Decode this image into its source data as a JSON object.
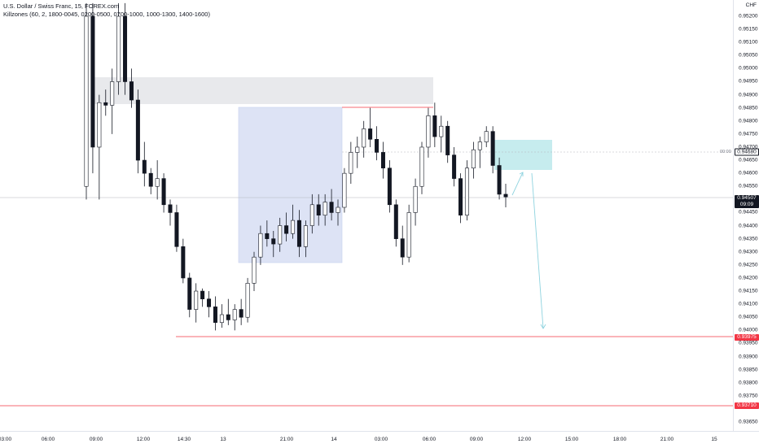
{
  "legend": {
    "title": "U.S. Dollar / Swiss Franc, 15, FOREX.com",
    "indicator": "Killzones (60, 2, 1800-0045, 0200-0500, 0700-1000, 1000-1300, 1400-1600)"
  },
  "price_axis": {
    "currency": "CHF",
    "ticks": [
      "0.95200",
      "0.95150",
      "0.95100",
      "0.95050",
      "0.95000",
      "0.94950",
      "0.94900",
      "0.94850",
      "0.94800",
      "0.94750",
      "0.94700",
      "0.94650",
      "0.94600",
      "0.94550",
      "0.94450",
      "0.94400",
      "0.94350",
      "0.94300",
      "0.94250",
      "0.94200",
      "0.94150",
      "0.94100",
      "0.94050",
      "0.94000",
      "0.93950",
      "0.93900",
      "0.93850",
      "0.93800",
      "0.93750",
      "0.93650"
    ],
    "current_price": "0.94507",
    "countdown": "09:09",
    "target_entry_price": "0.94680",
    "target_entry_time": "00:00",
    "low_level_1": "0.93975",
    "low_level_2": "0.93710"
  },
  "time_axis": {
    "labels": [
      "03:00",
      "06:00",
      "09:00",
      "12:00",
      "14:30",
      "13",
      "21:00",
      "14",
      "03:00",
      "06:00",
      "09:00",
      "12:00",
      "15:00",
      "18:00",
      "21:00",
      "15"
    ]
  },
  "colors": {
    "bull_body": "#ffffff",
    "bear_body": "#131722",
    "wick": "#131722",
    "gray_zone": "#e8e9ec",
    "blue_zone": "#dde3f5",
    "teal_zone": "#c6ecee",
    "red_line": "#f23645",
    "arrow": "#8fd3df"
  },
  "chart_data": {
    "type": "candlestick",
    "symbol": "USDCHF",
    "timeframe": "15",
    "ylim": [
      0.9363,
      0.9525
    ],
    "ohlc_note": "approximate open/high/low/close per 15m bar, read off the price axis",
    "candles": [
      [
        0.9455,
        0.9525,
        0.945,
        0.952
      ],
      [
        0.952,
        0.9525,
        0.946,
        0.947
      ],
      [
        0.947,
        0.949,
        0.945,
        0.9487
      ],
      [
        0.9487,
        0.9492,
        0.9482,
        0.9486
      ],
      [
        0.9486,
        0.95,
        0.9475,
        0.9495
      ],
      [
        0.9495,
        0.9525,
        0.949,
        0.952
      ],
      [
        0.952,
        0.9525,
        0.949,
        0.9495
      ],
      [
        0.9495,
        0.95,
        0.9485,
        0.9488
      ],
      [
        0.9488,
        0.9492,
        0.946,
        0.9465
      ],
      [
        0.9465,
        0.9472,
        0.9455,
        0.946
      ],
      [
        0.946,
        0.9462,
        0.9452,
        0.9455
      ],
      [
        0.9455,
        0.9465,
        0.945,
        0.9458
      ],
      [
        0.9458,
        0.946,
        0.9445,
        0.9448
      ],
      [
        0.9448,
        0.945,
        0.944,
        0.9445
      ],
      [
        0.9445,
        0.9448,
        0.943,
        0.9432
      ],
      [
        0.9432,
        0.9435,
        0.9418,
        0.942
      ],
      [
        0.942,
        0.9422,
        0.9405,
        0.9408
      ],
      [
        0.9408,
        0.9418,
        0.9403,
        0.9415
      ],
      [
        0.9415,
        0.9416,
        0.9409,
        0.9412
      ],
      [
        0.9412,
        0.9415,
        0.9405,
        0.9409
      ],
      [
        0.9409,
        0.9413,
        0.94,
        0.9403
      ],
      [
        0.9403,
        0.941,
        0.9401,
        0.9406
      ],
      [
        0.9406,
        0.9412,
        0.9402,
        0.9404
      ],
      [
        0.9404,
        0.941,
        0.94,
        0.9408
      ],
      [
        0.9408,
        0.9412,
        0.9402,
        0.9405
      ],
      [
        0.9405,
        0.942,
        0.9403,
        0.9418
      ],
      [
        0.9418,
        0.943,
        0.9415,
        0.9428
      ],
      [
        0.9428,
        0.944,
        0.9425,
        0.9437
      ],
      [
        0.9437,
        0.9442,
        0.9432,
        0.9435
      ],
      [
        0.9435,
        0.9438,
        0.9428,
        0.9433
      ],
      [
        0.9433,
        0.9443,
        0.943,
        0.944
      ],
      [
        0.944,
        0.9445,
        0.9434,
        0.9437
      ],
      [
        0.9437,
        0.9448,
        0.9435,
        0.9442
      ],
      [
        0.9442,
        0.9446,
        0.9428,
        0.9432
      ],
      [
        0.9432,
        0.9442,
        0.9428,
        0.944
      ],
      [
        0.944,
        0.9452,
        0.9437,
        0.9448
      ],
      [
        0.9448,
        0.9452,
        0.944,
        0.9444
      ],
      [
        0.9444,
        0.9452,
        0.944,
        0.9449
      ],
      [
        0.9449,
        0.9454,
        0.9442,
        0.9445
      ],
      [
        0.9445,
        0.945,
        0.944,
        0.9447
      ],
      [
        0.9447,
        0.9462,
        0.9445,
        0.946
      ],
      [
        0.946,
        0.9472,
        0.9456,
        0.9468
      ],
      [
        0.9468,
        0.9474,
        0.9462,
        0.947
      ],
      [
        0.947,
        0.948,
        0.9466,
        0.9477
      ],
      [
        0.9477,
        0.9485,
        0.947,
        0.9473
      ],
      [
        0.9473,
        0.9478,
        0.9465,
        0.9468
      ],
      [
        0.9468,
        0.9472,
        0.9458,
        0.9462
      ],
      [
        0.9462,
        0.9465,
        0.9445,
        0.9448
      ],
      [
        0.9448,
        0.945,
        0.9432,
        0.9435
      ],
      [
        0.9435,
        0.944,
        0.9425,
        0.9428
      ],
      [
        0.9428,
        0.9448,
        0.9426,
        0.9445
      ],
      [
        0.9445,
        0.9458,
        0.944,
        0.9455
      ],
      [
        0.9455,
        0.9472,
        0.9452,
        0.947
      ],
      [
        0.947,
        0.9485,
        0.9466,
        0.9482
      ],
      [
        0.9482,
        0.9487,
        0.947,
        0.9474
      ],
      [
        0.9474,
        0.9482,
        0.9468,
        0.9478
      ],
      [
        0.9478,
        0.948,
        0.9464,
        0.9467
      ],
      [
        0.9467,
        0.947,
        0.9455,
        0.9458
      ],
      [
        0.9458,
        0.946,
        0.9441,
        0.9444
      ],
      [
        0.9444,
        0.9465,
        0.9442,
        0.9462
      ],
      [
        0.9462,
        0.9472,
        0.9458,
        0.9469
      ],
      [
        0.9469,
        0.9474,
        0.9462,
        0.9472
      ],
      [
        0.9472,
        0.9478,
        0.947,
        0.9476
      ],
      [
        0.9476,
        0.9478,
        0.946,
        0.9463
      ],
      [
        0.9463,
        0.9466,
        0.945,
        0.9452
      ],
      [
        0.9452,
        0.9456,
        0.9447,
        0.9451
      ]
    ],
    "annotations": [
      {
        "type": "horizontal_line",
        "price": 0.93975,
        "color": "#f23645"
      },
      {
        "type": "horizontal_line",
        "price": 0.9371,
        "color": "#f23645"
      },
      {
        "type": "horizontal_line",
        "price": 0.94852,
        "color": "#f23645",
        "segment": true
      },
      {
        "type": "zone",
        "label": "gray",
        "price_top": 0.94965,
        "price_bottom": 0.94865
      },
      {
        "type": "zone",
        "label": "blue",
        "price_top": 0.9485,
        "price_bottom": 0.94265
      },
      {
        "type": "zone",
        "label": "teal",
        "price_top": 0.94735,
        "price_bottom": 0.94615
      },
      {
        "type": "arrow",
        "path": "projection to 0.9400"
      }
    ]
  }
}
